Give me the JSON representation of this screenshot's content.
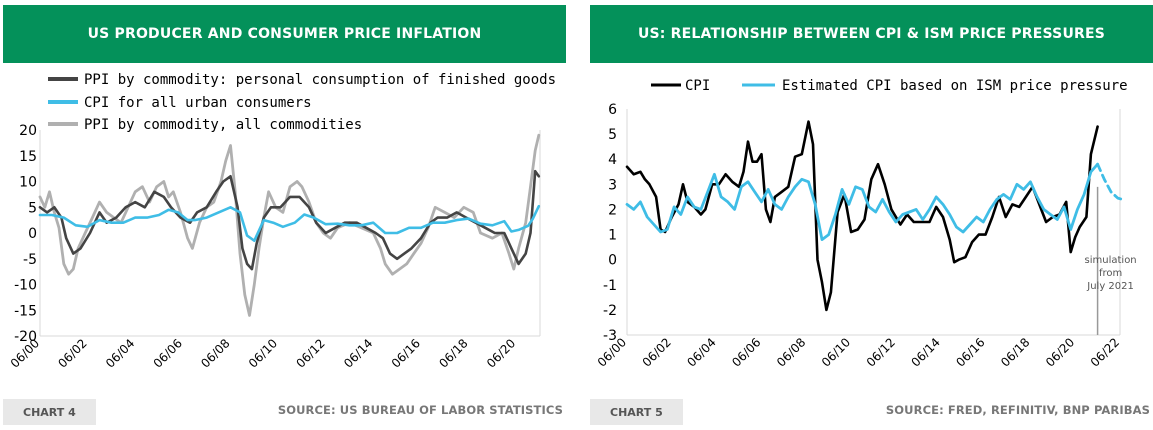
{
  "colors": {
    "header_bg": "#04915a",
    "badge_bg": "#e8e8e8",
    "neg_tick": "#cc0000",
    "dark_series": "#444444",
    "black_series": "#000000",
    "cyan_series": "#3fbde6",
    "gray_series": "#b0b0b0",
    "grid": "#d9d9d9"
  },
  "left": {
    "header": "US PRODUCER AND CONSUMER PRICE INFLATION",
    "badge": "CHART 4",
    "source": "SOURCE: US BUREAU OF LABOR STATISTICS"
  },
  "right": {
    "header": "US: RELATIONSHIP BETWEEN CPI & ISM PRICE PRESSURES",
    "badge": "CHART 5",
    "source": "SOURCE: FRED, REFINITIV, BNP PARIBAS"
  },
  "chart_data": [
    {
      "type": "line",
      "title": "US PRODUCER AND CONSUMER PRICE INFLATION",
      "ylim": [
        -20,
        20
      ],
      "yticks": [
        20,
        15,
        10,
        5,
        0,
        -5,
        -10,
        -15,
        -20
      ],
      "xlim": [
        2000.5,
        2021.5
      ],
      "xticks": [
        "06/00",
        "06/02",
        "06/04",
        "06/06",
        "06/08",
        "06/10",
        "06/12",
        "06/14",
        "06/16",
        "06/18",
        "06/20"
      ],
      "legend": [
        "PPI by commodity: personal consumption of finished goods",
        "CPI for all urban consumers",
        "PPI by commodity, all commodities"
      ],
      "series": [
        {
          "name": "PPI by commodity, all commodities",
          "x": [
            2000.5,
            2000.7,
            2000.9,
            2001.1,
            2001.3,
            2001.5,
            2001.7,
            2001.9,
            2002.1,
            2002.4,
            2002.7,
            2003.0,
            2003.3,
            2003.6,
            2003.9,
            2004.2,
            2004.5,
            2004.8,
            2005.1,
            2005.4,
            2005.7,
            2005.9,
            2006.1,
            2006.4,
            2006.7,
            2006.9,
            2007.2,
            2007.5,
            2007.8,
            2008.1,
            2008.3,
            2008.5,
            2008.7,
            2008.9,
            2009.1,
            2009.3,
            2009.5,
            2009.7,
            2009.9,
            2010.1,
            2010.4,
            2010.7,
            2011.0,
            2011.3,
            2011.5,
            2011.8,
            2012.1,
            2012.4,
            2012.7,
            2013.0,
            2013.5,
            2014.0,
            2014.5,
            2014.8,
            2015.0,
            2015.3,
            2015.6,
            2015.9,
            2016.2,
            2016.5,
            2016.8,
            2017.1,
            2017.5,
            2017.9,
            2018.3,
            2018.7,
            2019.0,
            2019.5,
            2019.9,
            2020.2,
            2020.4,
            2020.6,
            2020.9,
            2021.1,
            2021.3,
            2021.45
          ],
          "values": [
            7,
            5,
            8,
            4,
            1,
            -6,
            -8,
            -7,
            -3,
            0,
            3,
            6,
            4,
            3,
            2,
            5,
            8,
            9,
            6,
            9,
            10,
            7,
            8,
            4,
            -1,
            -3,
            2,
            5,
            6,
            10,
            14,
            17,
            8,
            -4,
            -12,
            -16,
            -10,
            -3,
            3,
            8,
            5,
            4,
            9,
            10,
            9,
            6,
            2,
            0,
            -1,
            1,
            2,
            1,
            0,
            -3,
            -6,
            -8,
            -7,
            -6,
            -4,
            -2,
            1,
            5,
            4,
            3,
            5,
            4,
            0,
            -1,
            0,
            -4,
            -7,
            -3,
            2,
            9,
            16,
            19
          ]
        },
        {
          "name": "PPI by commodity: personal consumption of finished goods",
          "x": [
            2000.5,
            2000.8,
            2001.1,
            2001.4,
            2001.6,
            2001.9,
            2002.2,
            2002.6,
            2003.0,
            2003.3,
            2003.7,
            2004.1,
            2004.5,
            2004.9,
            2005.3,
            2005.7,
            2006.0,
            2006.4,
            2006.8,
            2007.1,
            2007.5,
            2007.9,
            2008.2,
            2008.5,
            2008.8,
            2009.0,
            2009.2,
            2009.4,
            2009.6,
            2009.9,
            2010.2,
            2010.6,
            2011.0,
            2011.4,
            2011.8,
            2012.1,
            2012.5,
            2012.9,
            2013.3,
            2013.8,
            2014.2,
            2014.6,
            2014.9,
            2015.2,
            2015.5,
            2015.8,
            2016.1,
            2016.5,
            2016.9,
            2017.2,
            2017.6,
            2018.0,
            2018.4,
            2018.8,
            2019.2,
            2019.6,
            2020.0,
            2020.3,
            2020.6,
            2020.9,
            2021.1,
            2021.3,
            2021.45
          ],
          "values": [
            5,
            4,
            5,
            3,
            -1,
            -4,
            -3,
            0,
            4,
            2,
            3,
            5,
            6,
            5,
            8,
            7,
            5,
            3,
            2,
            4,
            5,
            8,
            10,
            11,
            5,
            -3,
            -6,
            -7,
            -2,
            3,
            5,
            5,
            7,
            7,
            5,
            2,
            0,
            1,
            2,
            2,
            1,
            0,
            -1,
            -4,
            -5,
            -4,
            -3,
            -1,
            2,
            3,
            3,
            4,
            3,
            2,
            1,
            0,
            0,
            -3,
            -6,
            -4,
            0,
            12,
            11
          ]
        },
        {
          "name": "CPI for all urban consumers",
          "x": [
            2000.5,
            2001.0,
            2001.5,
            2002.0,
            2002.5,
            2003.0,
            2003.5,
            2004.0,
            2004.5,
            2005.0,
            2005.5,
            2005.9,
            2006.3,
            2006.7,
            2007.0,
            2007.5,
            2008.0,
            2008.5,
            2008.9,
            2009.2,
            2009.5,
            2009.9,
            2010.3,
            2010.7,
            2011.2,
            2011.6,
            2012.0,
            2012.5,
            2013.0,
            2013.5,
            2014.0,
            2014.5,
            2015.0,
            2015.5,
            2016.0,
            2016.5,
            2017.0,
            2017.5,
            2018.0,
            2018.5,
            2019.0,
            2019.5,
            2020.0,
            2020.3,
            2020.6,
            2021.0,
            2021.2,
            2021.45
          ],
          "values": [
            3.5,
            3.5,
            3,
            1.5,
            1.2,
            2.5,
            2,
            2,
            3,
            3,
            3.5,
            4.5,
            4,
            2.5,
            2.5,
            3,
            4,
            5,
            4,
            -0.5,
            -1.5,
            2.5,
            2,
            1.2,
            2,
            3.6,
            3,
            1.7,
            1.8,
            1.5,
            1.5,
            2,
            0,
            0,
            1,
            1,
            2,
            2,
            2.5,
            2.8,
            1.8,
            1.5,
            2.3,
            0.3,
            0.6,
            1.4,
            2.8,
            5.2
          ]
        }
      ]
    },
    {
      "type": "line",
      "title": "US: RELATIONSHIP BETWEEN CPI & ISM PRICE PRESSURES",
      "ylim": [
        -3,
        6
      ],
      "yticks": [
        6,
        5,
        4,
        3,
        2,
        1,
        0,
        -1,
        -2,
        -3
      ],
      "xlim": [
        2000.5,
        2022.5
      ],
      "xticks": [
        "06/00",
        "06/02",
        "06/04",
        "06/06",
        "06/08",
        "06/10",
        "06/12",
        "06/14",
        "06/16",
        "06/18",
        "06/20",
        "06/22"
      ],
      "legend": [
        "CPI",
        "Estimated CPI based on ISM price pressure"
      ],
      "annotation": [
        "simulation",
        "from",
        "July 2021"
      ],
      "vline_x": 2021.5,
      "series": [
        {
          "name": "CPI",
          "x": [
            2000.5,
            2000.8,
            2001.1,
            2001.3,
            2001.5,
            2001.8,
            2002.0,
            2002.2,
            2002.5,
            2002.8,
            2003.0,
            2003.2,
            2003.5,
            2003.8,
            2004.0,
            2004.3,
            2004.6,
            2004.9,
            2005.2,
            2005.5,
            2005.7,
            2005.9,
            2006.1,
            2006.3,
            2006.5,
            2006.7,
            2006.9,
            2007.1,
            2007.4,
            2007.7,
            2008.0,
            2008.3,
            2008.6,
            2008.8,
            2009.0,
            2009.2,
            2009.4,
            2009.6,
            2009.9,
            2010.2,
            2010.5,
            2010.8,
            2011.1,
            2011.4,
            2011.7,
            2012.0,
            2012.3,
            2012.7,
            2013.0,
            2013.3,
            2013.6,
            2014.0,
            2014.3,
            2014.6,
            2014.9,
            2015.1,
            2015.3,
            2015.6,
            2015.9,
            2016.2,
            2016.5,
            2016.8,
            2017.1,
            2017.4,
            2017.7,
            2018.0,
            2018.3,
            2018.6,
            2018.9,
            2019.2,
            2019.5,
            2019.8,
            2020.1,
            2020.3,
            2020.5,
            2020.7,
            2021.0,
            2021.2,
            2021.5
          ],
          "values": [
            3.7,
            3.4,
            3.5,
            3.2,
            3.0,
            2.5,
            1.2,
            1.1,
            1.7,
            2.2,
            3.0,
            2.3,
            2.1,
            1.8,
            2.0,
            3.0,
            3.0,
            3.4,
            3.1,
            2.9,
            3.5,
            4.7,
            3.9,
            3.9,
            4.2,
            2.0,
            1.5,
            2.5,
            2.7,
            2.9,
            4.1,
            4.2,
            5.5,
            4.6,
            0.0,
            -0.9,
            -2.0,
            -1.3,
            1.9,
            2.6,
            1.1,
            1.2,
            1.6,
            3.2,
            3.8,
            3.0,
            2.0,
            1.4,
            1.8,
            1.5,
            1.5,
            1.5,
            2.1,
            1.7,
            0.8,
            -0.1,
            0.0,
            0.1,
            0.7,
            1.0,
            1.0,
            1.7,
            2.5,
            1.7,
            2.2,
            2.1,
            2.5,
            2.9,
            2.2,
            1.5,
            1.7,
            1.8,
            2.3,
            0.3,
            0.9,
            1.3,
            1.7,
            4.2,
            5.3
          ]
        },
        {
          "name": "Estimated CPI based on ISM price pressure",
          "x": [
            2000.5,
            2000.8,
            2001.1,
            2001.4,
            2001.7,
            2002.0,
            2002.3,
            2002.6,
            2002.9,
            2003.2,
            2003.5,
            2003.8,
            2004.1,
            2004.4,
            2004.7,
            2005.0,
            2005.3,
            2005.6,
            2005.9,
            2006.2,
            2006.5,
            2006.8,
            2007.1,
            2007.4,
            2007.7,
            2008.0,
            2008.3,
            2008.6,
            2008.9,
            2009.2,
            2009.5,
            2009.8,
            2010.1,
            2010.4,
            2010.7,
            2011.0,
            2011.3,
            2011.6,
            2011.9,
            2012.2,
            2012.5,
            2012.8,
            2013.1,
            2013.4,
            2013.7,
            2014.0,
            2014.3,
            2014.6,
            2014.9,
            2015.2,
            2015.5,
            2015.8,
            2016.1,
            2016.4,
            2016.7,
            2017.0,
            2017.3,
            2017.6,
            2017.9,
            2018.2,
            2018.5,
            2018.8,
            2019.1,
            2019.4,
            2019.7,
            2020.0,
            2020.3,
            2020.6,
            2020.9,
            2021.2,
            2021.5
          ],
          "values": [
            2.2,
            2.0,
            2.3,
            1.7,
            1.4,
            1.1,
            1.2,
            2.1,
            1.8,
            2.5,
            2.1,
            2.0,
            2.7,
            3.4,
            2.5,
            2.3,
            2.0,
            2.9,
            3.1,
            2.7,
            2.3,
            2.8,
            2.2,
            2.0,
            2.5,
            2.9,
            3.2,
            3.1,
            2.2,
            0.8,
            1.0,
            1.8,
            2.8,
            2.2,
            2.9,
            2.8,
            2.1,
            1.9,
            2.4,
            1.9,
            1.5,
            1.8,
            1.9,
            2.0,
            1.6,
            2.0,
            2.5,
            2.2,
            1.8,
            1.3,
            1.1,
            1.4,
            1.7,
            1.5,
            2.0,
            2.4,
            2.6,
            2.4,
            3.0,
            2.8,
            3.1,
            2.5,
            2.0,
            1.8,
            1.6,
            2.1,
            1.2,
            2.0,
            2.6,
            3.5,
            3.8
          ]
        },
        {
          "name": "Estimated CPI (simulation)",
          "x": [
            2021.5,
            2021.8,
            2022.1,
            2022.4,
            2022.6
          ],
          "values": [
            3.8,
            3.2,
            2.7,
            2.45,
            2.4
          ]
        }
      ]
    }
  ]
}
